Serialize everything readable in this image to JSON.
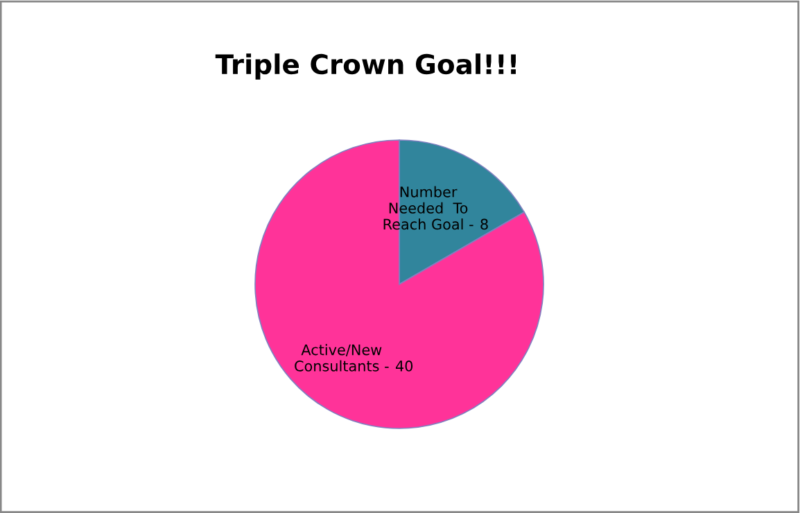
{
  "chart_data": {
    "type": "pie",
    "title": "Triple Crown Goal!!!",
    "categories": [
      "Number\nNeeded  To\nReach Goal -",
      "Active/New\nConsultants -"
    ],
    "data_labels": true,
    "values": [
      8,
      40
    ],
    "colors": [
      "#31859c",
      "#ff3399"
    ],
    "legend": false
  }
}
